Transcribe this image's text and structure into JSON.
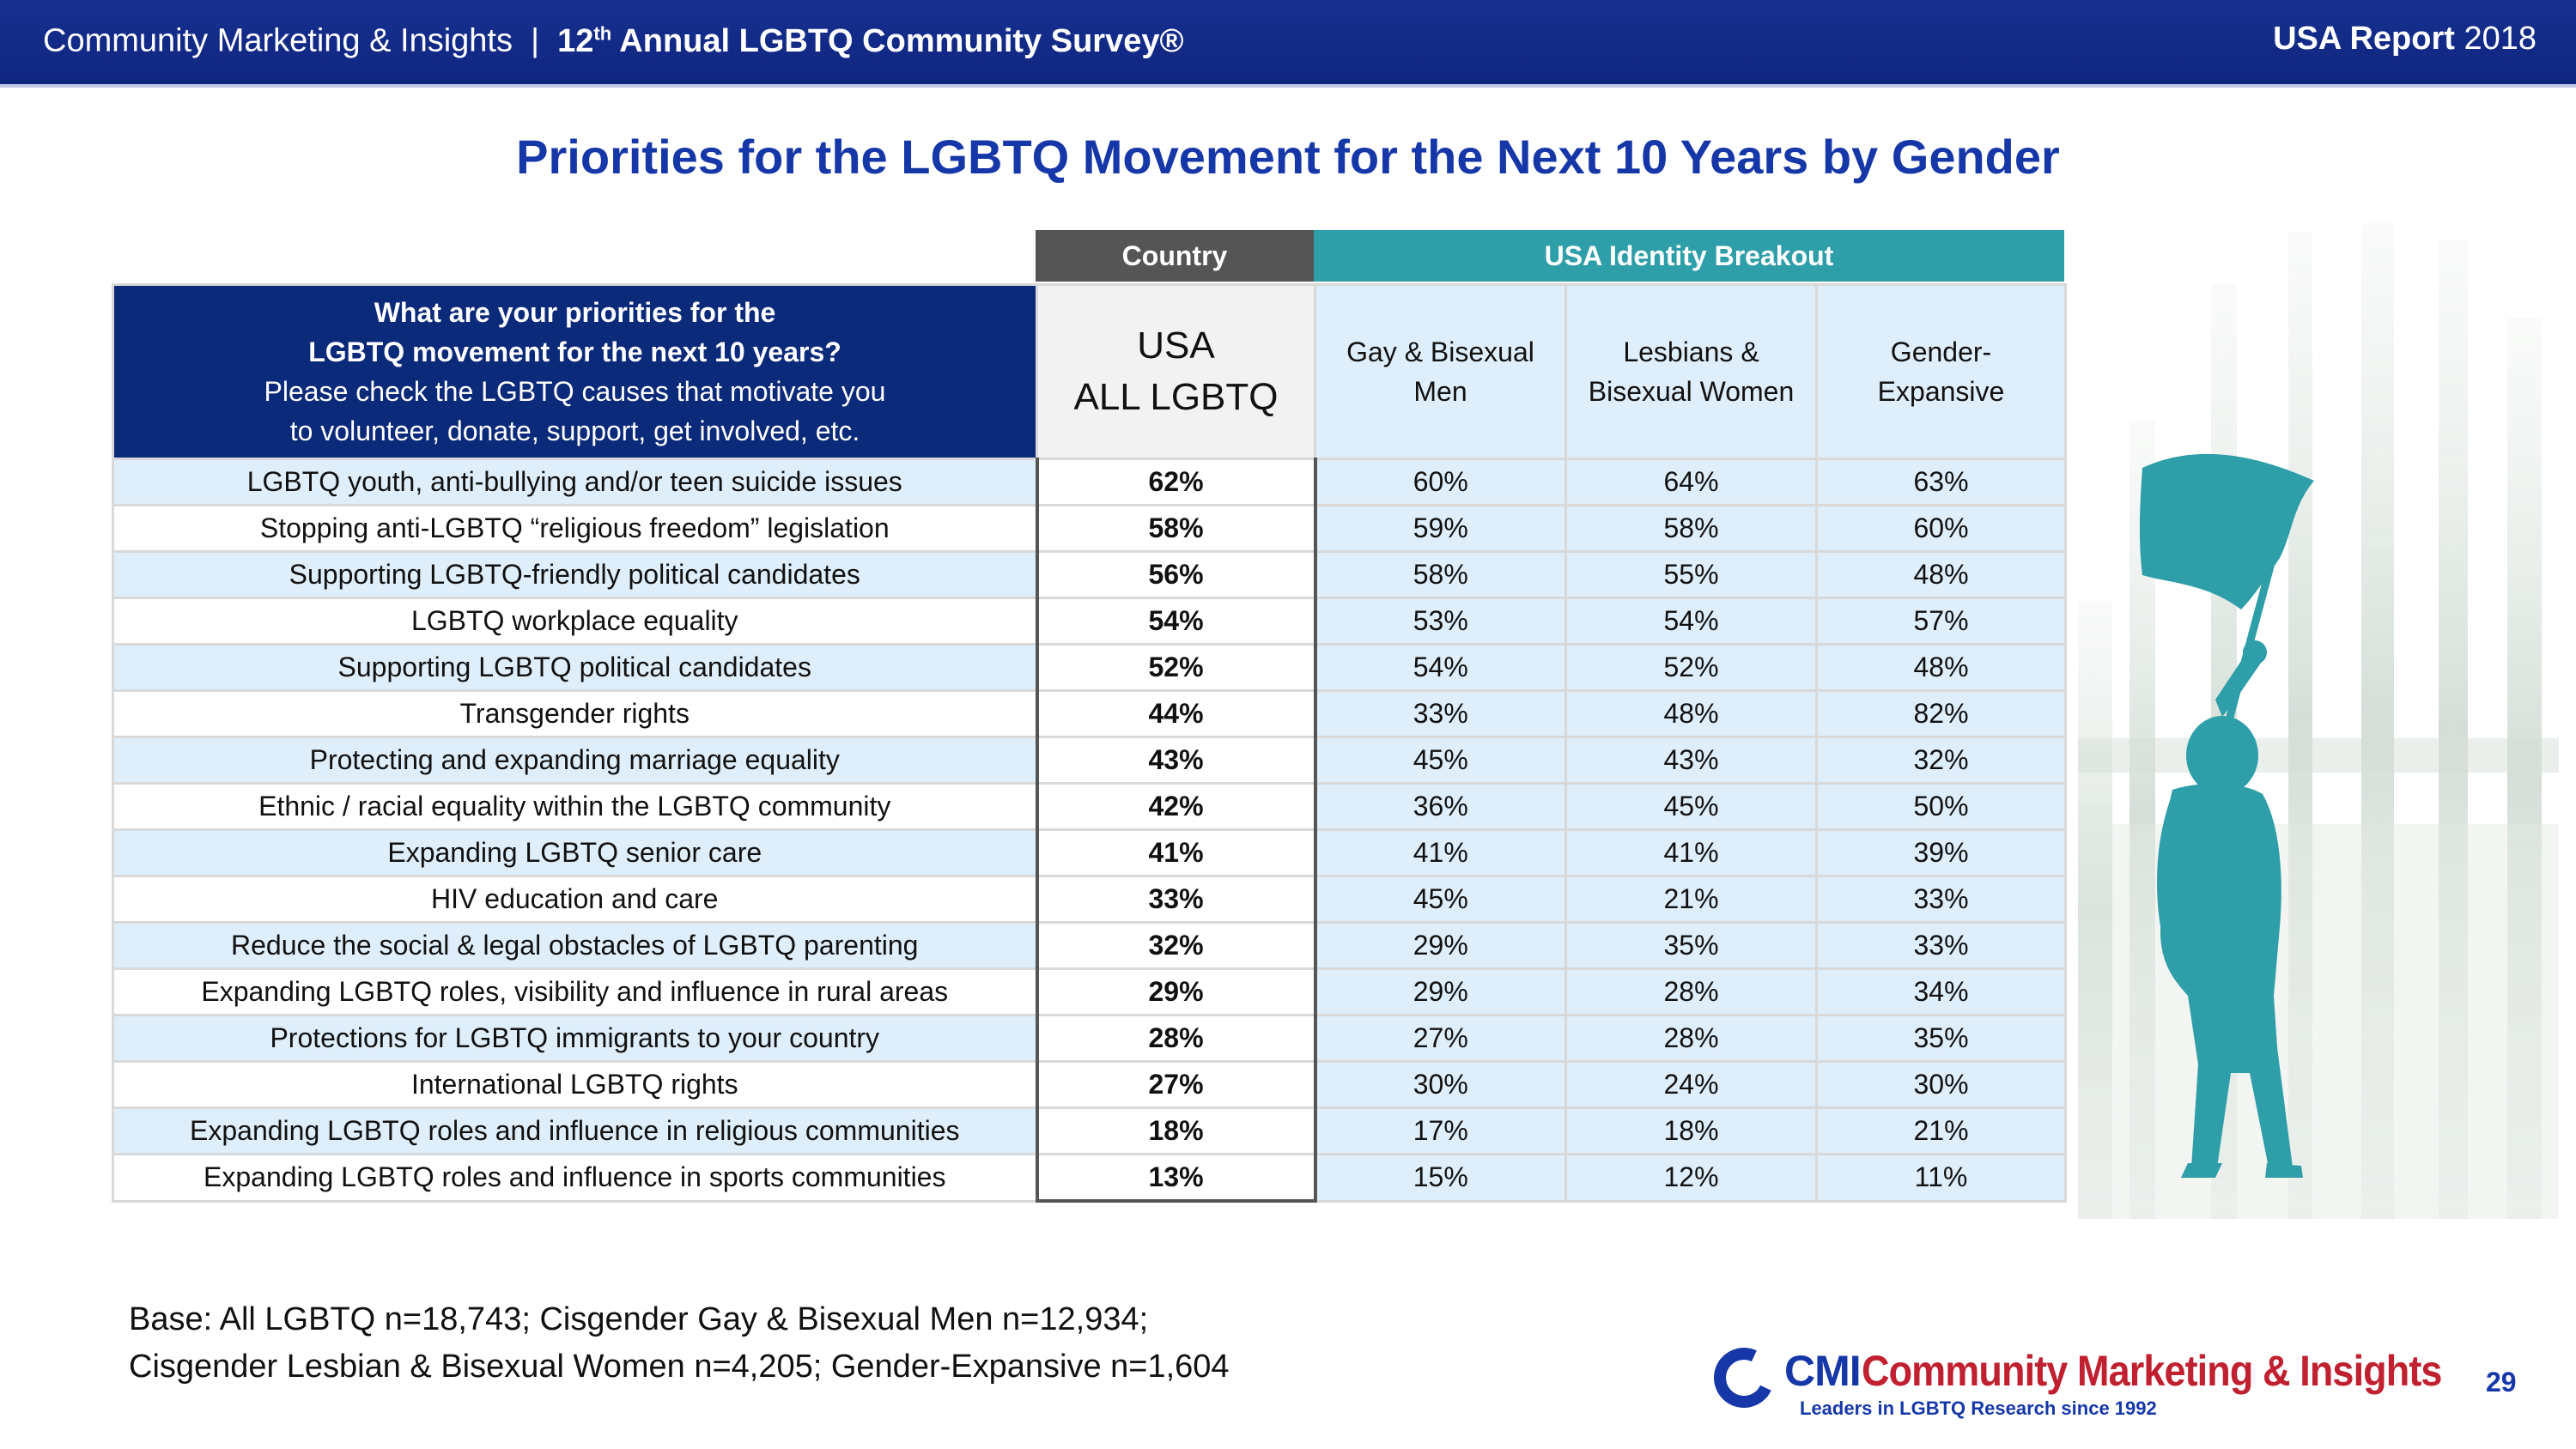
{
  "header": {
    "org": "Community Marketing & Insights",
    "separator": "|",
    "survey_prefix": "12",
    "survey_sup": "th",
    "survey_rest": " Annual LGBTQ Community Survey®",
    "report_bold": "USA Report",
    "report_year": "2018"
  },
  "title": "Priorities for the LGBTQ Movement for the Next 10 Years by Gender",
  "table": {
    "group_country": "Country",
    "group_breakout": "USA Identity Breakout",
    "question_line1": "What are your priorities for the",
    "question_line2": "LGBTQ movement for the next 10 years?",
    "question_line3": "Please check the LGBTQ causes that motivate you",
    "question_line4": "to volunteer, donate, support, get involved, etc.",
    "usa_line1": "USA",
    "usa_line2": "ALL LGBTQ",
    "col_gay_line1": "Gay & Bisexual",
    "col_gay_line2": "Men",
    "col_les_line1": "Lesbians &",
    "col_les_line2": "Bisexual Women",
    "col_ge_line1": "Gender-",
    "col_ge_line2": "Expansive",
    "rows": [
      {
        "label": "LGBTQ youth, anti-bullying and/or teen suicide issues",
        "usa": "62%",
        "gay": "60%",
        "les": "64%",
        "ge": "63%"
      },
      {
        "label": "Stopping anti-LGBTQ “religious freedom” legislation",
        "usa": "58%",
        "gay": "59%",
        "les": "58%",
        "ge": "60%"
      },
      {
        "label": "Supporting LGBTQ-friendly political candidates",
        "usa": "56%",
        "gay": "58%",
        "les": "55%",
        "ge": "48%"
      },
      {
        "label": "LGBTQ workplace equality",
        "usa": "54%",
        "gay": "53%",
        "les": "54%",
        "ge": "57%"
      },
      {
        "label": "Supporting LGBTQ political candidates",
        "usa": "52%",
        "gay": "54%",
        "les": "52%",
        "ge": "48%"
      },
      {
        "label": "Transgender rights",
        "usa": "44%",
        "gay": "33%",
        "les": "48%",
        "ge": "82%"
      },
      {
        "label": "Protecting and expanding marriage equality",
        "usa": "43%",
        "gay": "45%",
        "les": "43%",
        "ge": "32%"
      },
      {
        "label": "Ethnic / racial equality within the LGBTQ community",
        "usa": "42%",
        "gay": "36%",
        "les": "45%",
        "ge": "50%"
      },
      {
        "label": "Expanding LGBTQ senior care",
        "usa": "41%",
        "gay": "41%",
        "les": "41%",
        "ge": "39%"
      },
      {
        "label": "HIV education and care",
        "usa": "33%",
        "gay": "45%",
        "les": "21%",
        "ge": "33%"
      },
      {
        "label": "Reduce the social & legal obstacles of LGBTQ parenting",
        "usa": "32%",
        "gay": "29%",
        "les": "35%",
        "ge": "33%"
      },
      {
        "label": "Expanding LGBTQ roles, visibility and influence in rural areas",
        "usa": "29%",
        "gay": "29%",
        "les": "28%",
        "ge": "34%"
      },
      {
        "label": "Protections for LGBTQ immigrants to your country",
        "usa": "28%",
        "gay": "27%",
        "les": "28%",
        "ge": "35%"
      },
      {
        "label": "International LGBTQ rights",
        "usa": "27%",
        "gay": "30%",
        "les": "24%",
        "ge": "30%"
      },
      {
        "label": "Expanding LGBTQ roles and influence in religious communities",
        "usa": "18%",
        "gay": "17%",
        "les": "18%",
        "ge": "21%"
      },
      {
        "label": "Expanding LGBTQ roles and influence in sports communities",
        "usa": "13%",
        "gay": "15%",
        "les": "12%",
        "ge": "11%"
      }
    ]
  },
  "base_line1": "Base: All LGBTQ n=18,743; Cisgender Gay & Bisexual Men n=12,934;",
  "base_line2": "Cisgender Lesbian & Bisexual Women n=4,205; Gender-Expansive n=1,604",
  "logo": {
    "cmi": "CMI",
    "name": "Community Marketing & Insights",
    "tagline": "Leaders in LGBTQ Research since 1992"
  },
  "page_number": "29",
  "colors": {
    "header_bg": "#0f2580",
    "title": "#1637a8",
    "country_header": "#555555",
    "breakout_header": "#2e9ea8",
    "question_bg": "#0c2a7a",
    "row_tint": "#deeefa",
    "figure": "#2e9ea8",
    "logo_red": "#c0202f"
  },
  "icons": [
    "flag-bearer-illustration",
    "cmi-logo-ring"
  ]
}
